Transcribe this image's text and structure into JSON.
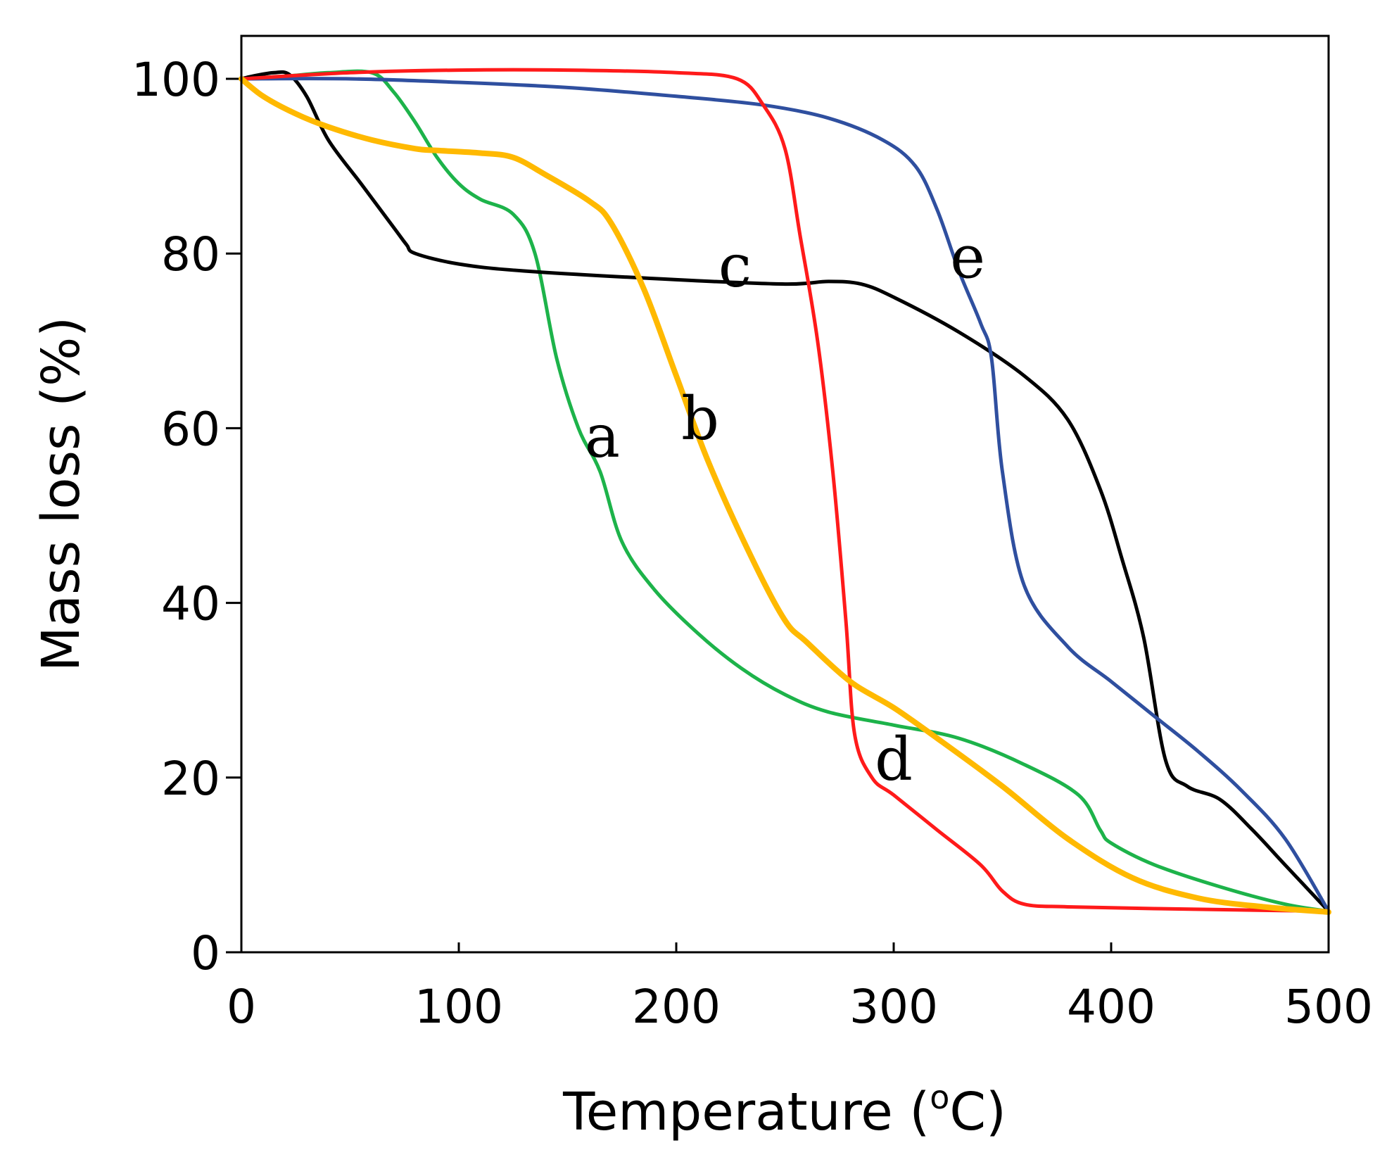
{
  "chart_data": {
    "type": "line",
    "title": "",
    "xlabel_main": "Temperature (",
    "xlabel_unit_sup": "o",
    "xlabel_unit_end": "C)",
    "ylabel": "Mass loss (%)",
    "xlim": [
      0,
      500
    ],
    "ylim": [
      0,
      100
    ],
    "xticks": [
      0,
      100,
      200,
      300,
      400,
      500
    ],
    "yticks": [
      0,
      20,
      40,
      60,
      80,
      100
    ],
    "grid": false,
    "colors": {
      "a": "#1db34a",
      "b": "#ffb900",
      "c": "#000000",
      "d": "#ff1a1a",
      "e": "#2f4f9f"
    },
    "series": [
      {
        "name": "a",
        "label_pos": [
          166,
          59
        ],
        "points": [
          [
            0,
            100
          ],
          [
            20,
            100.3
          ],
          [
            40,
            100.7
          ],
          [
            60,
            100.7
          ],
          [
            70,
            98.5
          ],
          [
            80,
            95
          ],
          [
            90,
            91
          ],
          [
            100,
            88
          ],
          [
            110,
            86.2
          ],
          [
            125,
            84.5
          ],
          [
            135,
            80
          ],
          [
            145,
            68
          ],
          [
            155,
            60
          ],
          [
            165,
            55
          ],
          [
            175,
            47
          ],
          [
            190,
            41.5
          ],
          [
            210,
            36.5
          ],
          [
            230,
            32.5
          ],
          [
            250,
            29.5
          ],
          [
            270,
            27.5
          ],
          [
            300,
            26
          ],
          [
            330,
            24.5
          ],
          [
            360,
            21.5
          ],
          [
            385,
            18
          ],
          [
            395,
            14
          ],
          [
            400,
            12.5
          ],
          [
            420,
            10
          ],
          [
            450,
            7.5
          ],
          [
            480,
            5.5
          ],
          [
            500,
            4.7
          ]
        ]
      },
      {
        "name": "b",
        "label_pos": [
          211,
          61
        ],
        "points": [
          [
            0,
            100
          ],
          [
            10,
            98
          ],
          [
            25,
            96
          ],
          [
            40,
            94.5
          ],
          [
            60,
            93
          ],
          [
            80,
            92
          ],
          [
            90,
            91.8
          ],
          [
            110,
            91.5
          ],
          [
            125,
            91
          ],
          [
            140,
            89
          ],
          [
            160,
            86
          ],
          [
            170,
            83.5
          ],
          [
            185,
            76
          ],
          [
            200,
            66
          ],
          [
            215,
            56
          ],
          [
            235,
            45
          ],
          [
            250,
            38
          ],
          [
            260,
            35.5
          ],
          [
            280,
            31
          ],
          [
            300,
            28
          ],
          [
            320,
            24.5
          ],
          [
            350,
            19
          ],
          [
            380,
            13
          ],
          [
            410,
            8.5
          ],
          [
            440,
            6.2
          ],
          [
            470,
            5.2
          ],
          [
            500,
            4.6
          ]
        ]
      },
      {
        "name": "c",
        "label_pos": [
          227,
          78.5
        ],
        "points": [
          [
            0,
            100
          ],
          [
            5,
            100.3
          ],
          [
            15,
            100.7
          ],
          [
            22,
            100.5
          ],
          [
            30,
            98
          ],
          [
            40,
            93
          ],
          [
            55,
            88
          ],
          [
            70,
            83
          ],
          [
            76,
            81
          ],
          [
            80,
            80
          ],
          [
            100,
            78.8
          ],
          [
            130,
            78
          ],
          [
            200,
            77
          ],
          [
            250,
            76.5
          ],
          [
            270,
            76.8
          ],
          [
            285,
            76.5
          ],
          [
            300,
            75
          ],
          [
            330,
            71
          ],
          [
            360,
            66
          ],
          [
            380,
            61
          ],
          [
            395,
            53
          ],
          [
            405,
            45
          ],
          [
            415,
            36
          ],
          [
            425,
            22
          ],
          [
            435,
            19
          ],
          [
            450,
            17.5
          ],
          [
            465,
            14
          ],
          [
            480,
            10
          ],
          [
            500,
            4.7
          ]
        ]
      },
      {
        "name": "d",
        "label_pos": [
          300,
          22
        ],
        "points": [
          [
            0,
            100
          ],
          [
            50,
            100.7
          ],
          [
            100,
            101
          ],
          [
            150,
            101
          ],
          [
            200,
            100.7
          ],
          [
            228,
            100
          ],
          [
            240,
            97
          ],
          [
            250,
            92
          ],
          [
            257,
            82
          ],
          [
            265,
            70
          ],
          [
            272,
            55
          ],
          [
            278,
            38
          ],
          [
            282,
            25
          ],
          [
            290,
            20
          ],
          [
            300,
            18
          ],
          [
            320,
            14
          ],
          [
            340,
            10
          ],
          [
            350,
            7
          ],
          [
            360,
            5.5
          ],
          [
            380,
            5.2
          ],
          [
            420,
            5
          ],
          [
            500,
            4.7
          ]
        ]
      },
      {
        "name": "e",
        "label_pos": [
          334,
          79.5
        ],
        "points": [
          [
            0,
            100
          ],
          [
            50,
            100
          ],
          [
            100,
            99.6
          ],
          [
            150,
            99
          ],
          [
            200,
            98
          ],
          [
            240,
            97
          ],
          [
            270,
            95.5
          ],
          [
            295,
            93
          ],
          [
            310,
            90
          ],
          [
            320,
            85
          ],
          [
            330,
            78
          ],
          [
            340,
            72
          ],
          [
            345,
            68
          ],
          [
            350,
            55
          ],
          [
            360,
            42
          ],
          [
            380,
            35
          ],
          [
            400,
            31
          ],
          [
            420,
            27
          ],
          [
            440,
            23
          ],
          [
            460,
            18.5
          ],
          [
            480,
            13
          ],
          [
            500,
            4.7
          ]
        ]
      }
    ]
  }
}
